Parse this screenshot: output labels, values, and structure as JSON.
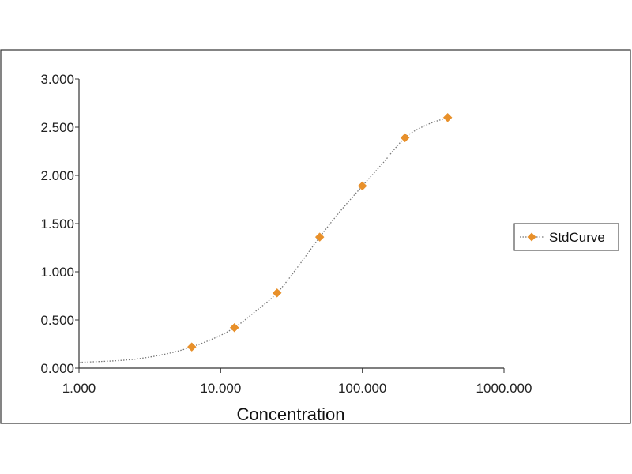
{
  "colors": {
    "marker": "#E8902A",
    "curve": "#777777",
    "axis": "#333333",
    "frame": "#333333"
  },
  "chart_data": {
    "type": "scatter",
    "xscale": "log",
    "xlabel": "Concentration",
    "ylabel": "",
    "xlim": [
      1,
      1000
    ],
    "ylim": [
      0,
      3
    ],
    "x_ticks": [
      {
        "value": 1,
        "label": "1.000"
      },
      {
        "value": 10,
        "label": "10.000"
      },
      {
        "value": 100,
        "label": "100.000"
      },
      {
        "value": 1000,
        "label": "1000.000"
      }
    ],
    "y_ticks": [
      {
        "value": 0,
        "label": "0.000"
      },
      {
        "value": 0.5,
        "label": "0.500"
      },
      {
        "value": 1,
        "label": "1.000"
      },
      {
        "value": 1.5,
        "label": "1.500"
      },
      {
        "value": 2,
        "label": "2.000"
      },
      {
        "value": 2.5,
        "label": "2.500"
      },
      {
        "value": 3,
        "label": "3.000"
      }
    ],
    "grid": false,
    "legend": {
      "position": "right"
    },
    "series": [
      {
        "name": "StdCurve",
        "marker": "diamond",
        "line": "dotted fitted curve",
        "points": [
          {
            "x": 6.25,
            "y": 0.22
          },
          {
            "x": 12.5,
            "y": 0.42
          },
          {
            "x": 25,
            "y": 0.78
          },
          {
            "x": 50,
            "y": 1.36
          },
          {
            "x": 100,
            "y": 1.89
          },
          {
            "x": 200,
            "y": 2.39
          },
          {
            "x": 400,
            "y": 2.6
          }
        ],
        "curve": [
          {
            "x": 1,
            "y": 0.06
          },
          {
            "x": 2,
            "y": 0.08
          },
          {
            "x": 3,
            "y": 0.11
          },
          {
            "x": 4.5,
            "y": 0.16
          },
          {
            "x": 6.25,
            "y": 0.22
          },
          {
            "x": 9,
            "y": 0.31
          },
          {
            "x": 12.5,
            "y": 0.42
          },
          {
            "x": 18,
            "y": 0.6
          },
          {
            "x": 25,
            "y": 0.78
          },
          {
            "x": 35,
            "y": 1.05
          },
          {
            "x": 50,
            "y": 1.36
          },
          {
            "x": 70,
            "y": 1.63
          },
          {
            "x": 100,
            "y": 1.89
          },
          {
            "x": 140,
            "y": 2.13
          },
          {
            "x": 200,
            "y": 2.39
          },
          {
            "x": 280,
            "y": 2.52
          },
          {
            "x": 400,
            "y": 2.6
          }
        ]
      }
    ]
  }
}
